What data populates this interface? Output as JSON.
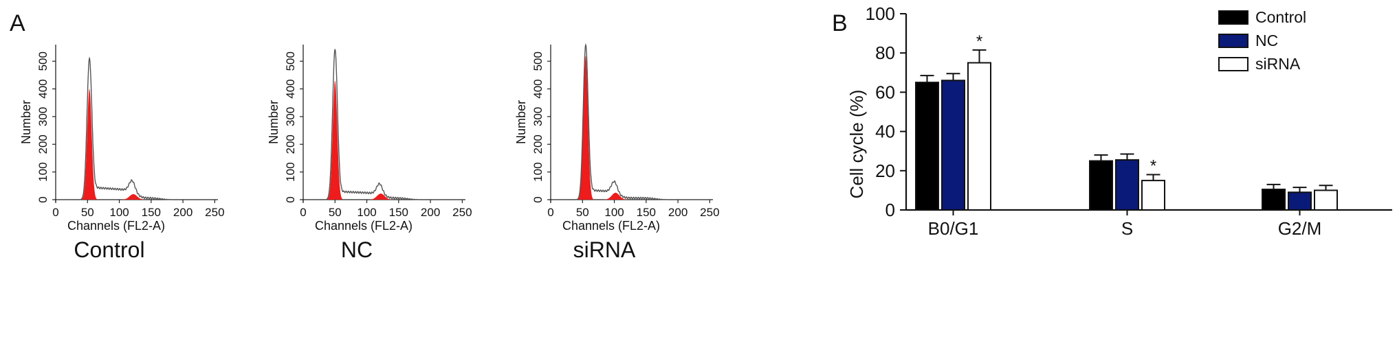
{
  "panel_a": {
    "label": "A",
    "x_label": "Channels (FL2-A)",
    "y_label": "Number",
    "x_ticks": [
      "0",
      "50",
      "100",
      "150",
      "200",
      "250"
    ],
    "y_ticks": [
      "0",
      "100",
      "200",
      "300",
      "400",
      "500"
    ],
    "fill_color": "#ee1c1c",
    "line_color": "#555555",
    "histograms": [
      {
        "caption": "Control",
        "peak1_height": 505,
        "peak1_pos": 53,
        "red1_height": 400,
        "peak2_height": 65,
        "peak2_pos": 120,
        "red2_height": 20,
        "baseline_level": 45
      },
      {
        "caption": "NC",
        "peak1_height": 540,
        "peak1_pos": 50,
        "red1_height": 430,
        "peak2_height": 55,
        "peak2_pos": 120,
        "red2_height": 22,
        "baseline_level": 30
      },
      {
        "caption": "siRNA",
        "peak1_height": 555,
        "peak1_pos": 55,
        "red1_height": 520,
        "peak2_height": 60,
        "peak2_pos": 100,
        "red2_height": 25,
        "baseline_level": 35
      }
    ]
  },
  "panel_b": {
    "label": "B",
    "ylabel": "Cell cycle (%)",
    "y_ticks": [
      "0",
      "20",
      "40",
      "60",
      "80",
      "100"
    ],
    "significance_marker": "*"
  },
  "chart_data": {
    "type": "bar",
    "categories": [
      "B0/G1",
      "S",
      "G2/M"
    ],
    "series": [
      {
        "name": "Control",
        "values": [
          65,
          25,
          10.5
        ],
        "errors": [
          3.5,
          3,
          2.5
        ],
        "color": "#000000"
      },
      {
        "name": "NC",
        "values": [
          66,
          25.5,
          9
        ],
        "errors": [
          3.5,
          3,
          2.5
        ],
        "color": "#0a1a78"
      },
      {
        "name": "siRNA",
        "values": [
          75,
          15,
          10
        ],
        "errors": [
          6.5,
          3,
          2.5
        ],
        "color": "#ffffff"
      }
    ],
    "significant": [
      [
        false,
        false,
        true
      ],
      [
        false,
        false,
        true
      ],
      [
        false,
        false,
        false
      ]
    ],
    "ylabel": "Cell cycle (%)",
    "ylim": [
      0,
      100
    ],
    "legend_position": "top-right"
  }
}
